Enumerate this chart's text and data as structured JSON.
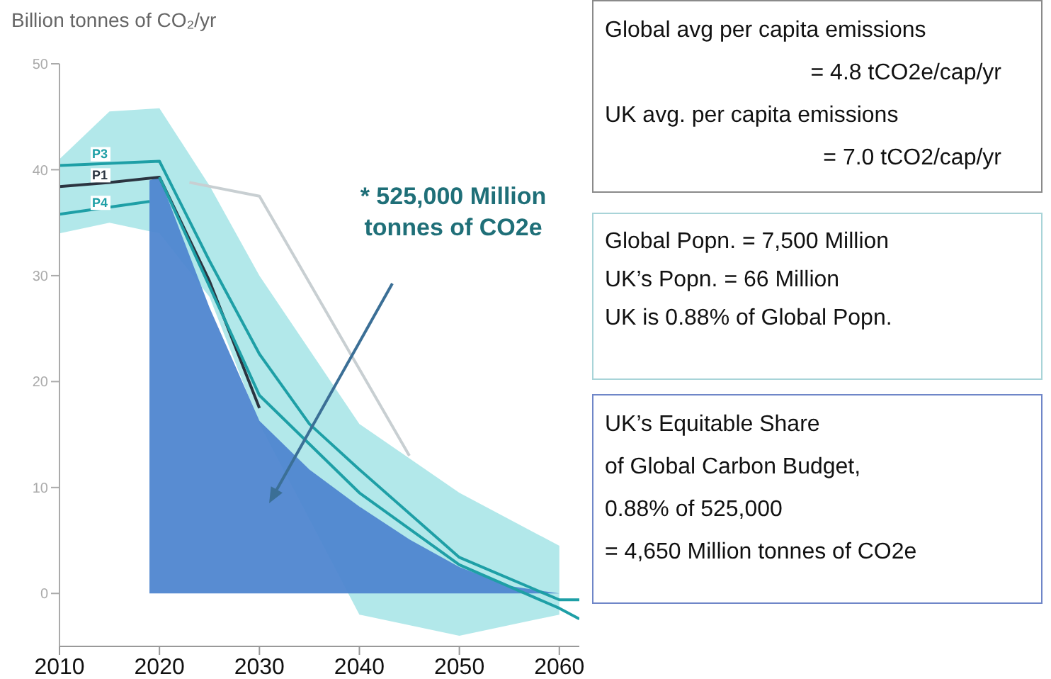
{
  "chart_data": {
    "type": "line",
    "ylabel": "Billion tonnes of CO₂/yr",
    "xlim": [
      2010,
      2062
    ],
    "xticks": [
      2010,
      2020,
      2030,
      2040,
      2050,
      2060
    ],
    "ylim": [
      -5,
      50
    ],
    "yticks": [
      0,
      10,
      20,
      30,
      40,
      50
    ],
    "series": [
      {
        "type": "area",
        "color": "#4f86d0",
        "x": [
          2019,
          2020,
          2025,
          2030,
          2035,
          2040,
          2045,
          2050,
          2055,
          2060
        ],
        "values": [
          39.0,
          39.3,
          27,
          16.3,
          11.7,
          8.2,
          5.1,
          2.5,
          0.7,
          0
        ]
      },
      {
        "name": "P3",
        "color": "#1e9fa6",
        "x": [
          2010,
          2020,
          2025,
          2030,
          2035,
          2040,
          2050,
          2060,
          2062
        ],
        "values": [
          40.4,
          40.8,
          31.4,
          22.6,
          16,
          11.7,
          3.4,
          -0.6,
          -0.6
        ]
      },
      {
        "name": "P1",
        "color": "#2b3440",
        "x": [
          2010,
          2015,
          2020,
          2025,
          2030,
          2040,
          2050,
          2060
        ],
        "values": [
          38.4,
          38.8,
          39.3,
          29.5,
          17.5,
          null,
          null,
          null
        ],
        "lower": [
          34,
          35,
          34,
          28,
          16,
          -2,
          -4,
          -2
        ],
        "upper": [
          41,
          45.5,
          45.8,
          38.5,
          30,
          16,
          9.5,
          4.5
        ]
      },
      {
        "name": "P4",
        "color": "#1e9fa6",
        "x": [
          2010,
          2019
        ],
        "values": [
          35.8,
          37.0
        ]
      },
      {
        "color": "#1e9fa6",
        "x": [
          2020,
          2030,
          2040,
          2050,
          2060,
          2062
        ],
        "values": [
          39.3,
          18.7,
          9.5,
          2.7,
          -1.4,
          -2.4
        ]
      },
      {
        "color": "#c8cfd2",
        "x": [
          2023,
          2030,
          2045
        ],
        "values": [
          38.8,
          37.5,
          13.0
        ]
      }
    ],
    "annotations": [
      "* 525,000 Million tonnes of CO2e",
      "Global avg per capita emissions",
      "= 4.8 tCO2e/cap/yr",
      "UK avg. per capita emissions",
      "= 7.0 tCO2/cap/yr",
      "Global Popn. = 7,500 Million",
      "UK’s Popn. = 66 Million",
      "UK is 0.88% of Global Popn.",
      "UK’s Equitable Share",
      "of Global Carbon Budget,",
      "0.88% of 525,000",
      "= 4,650 Million tonnes of CO2e"
    ]
  }
}
